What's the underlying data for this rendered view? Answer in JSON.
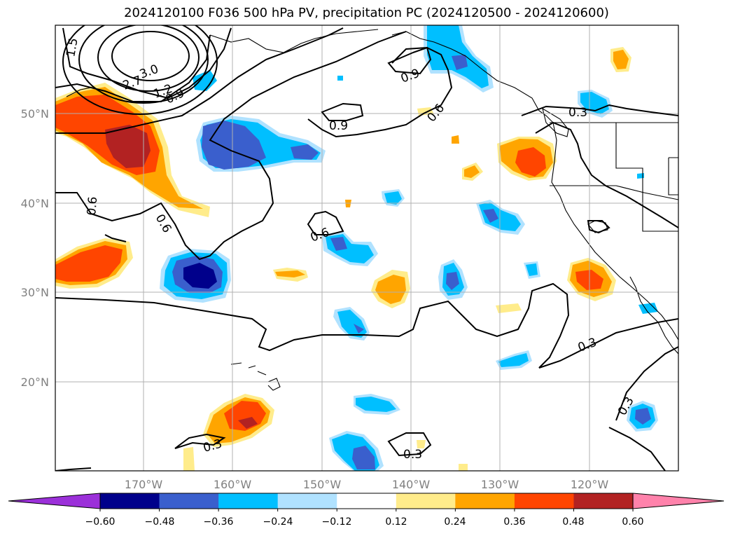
{
  "title": "2024120100 F036 500 hPa PV, precipitation PC (2024120500 - 2024120600)",
  "x_ticks": [
    "170°W",
    "160°W",
    "150°W",
    "140°W",
    "130°W",
    "120°W"
  ],
  "y_ticks": [
    "50°N",
    "40°N",
    "30°N",
    "20°N"
  ],
  "contour_labels": [
    "1.5",
    "2.7",
    "3.0",
    "1.2",
    "0.9",
    "0.9",
    "0.9",
    "0.6",
    "0.6",
    "0.6",
    "0.6",
    "0.3",
    "0.3",
    "0.3",
    "0.3",
    "0.3"
  ],
  "colorbar": {
    "ticks": [
      "−0.60",
      "−0.48",
      "−0.36",
      "−0.24",
      "−0.12",
      "0.12",
      "0.24",
      "0.36",
      "0.48",
      "0.60"
    ],
    "colors": [
      "#9b30d9",
      "#00008b",
      "#3a5fcd",
      "#00bfff",
      "#b0e2ff",
      "#ffffff",
      "#ffec8b",
      "#ffa500",
      "#ff4500",
      "#b22222",
      "#ff82ab"
    ]
  }
}
